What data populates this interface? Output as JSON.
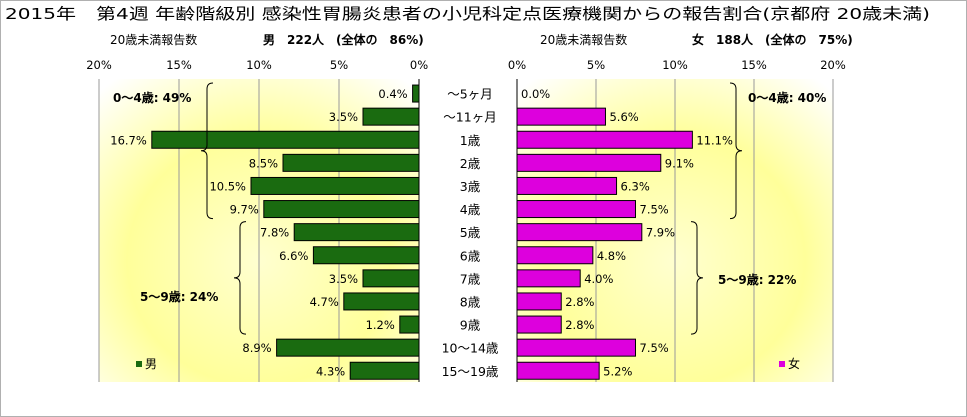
{
  "title": "2015年　第4週 年齢階級別 感染性胃腸炎患者の小児科定点医療機関からの報告割合(京都府 20歳未満)",
  "chart_data": {
    "type": "bar",
    "orientation": "horizontal-population-pyramid",
    "categories": [
      "～5ヶ月",
      "～11ヶ月",
      "1歳",
      "2歳",
      "3歳",
      "4歳",
      "5歳",
      "6歳",
      "7歳",
      "8歳",
      "9歳",
      "10～14歳",
      "15～19歳"
    ],
    "series": [
      {
        "name": "男",
        "header_label": "20歳未満報告数",
        "header_value": "男　222人　(全体の　86%)",
        "color": "#1a6b10",
        "values": [
          0.4,
          3.5,
          16.7,
          8.5,
          10.5,
          9.7,
          7.8,
          6.6,
          3.5,
          4.7,
          1.2,
          8.9,
          4.3
        ],
        "labels": [
          "0.4%",
          "3.5%",
          "16.7%",
          "8.5%",
          "10.5%",
          "9.7%",
          "7.8%",
          "6.6%",
          "3.5%",
          "4.7%",
          "1.2%",
          "8.9%",
          "4.3%"
        ],
        "axis_ticks": [
          "20%",
          "15%",
          "10%",
          "5%",
          "0%"
        ],
        "brackets": [
          {
            "label": "0～4歳: 49%",
            "from": 0,
            "to": 5
          },
          {
            "label": "5～9歳: 24%",
            "from": 6,
            "to": 10
          }
        ]
      },
      {
        "name": "女",
        "header_label": "20歳未満報告数",
        "header_value": "女　188人　(全体の　75%)",
        "color": "#dd00dd",
        "values": [
          0.0,
          5.6,
          11.1,
          9.1,
          6.3,
          7.5,
          7.9,
          4.8,
          4.0,
          2.8,
          2.8,
          7.5,
          5.2
        ],
        "labels": [
          "0.0%",
          "5.6%",
          "11.1%",
          "9.1%",
          "6.3%",
          "7.5%",
          "7.9%",
          "4.8%",
          "4.0%",
          "2.8%",
          "2.8%",
          "7.5%",
          "5.2%"
        ],
        "axis_ticks": [
          "0%",
          "5%",
          "10%",
          "15%",
          "20%"
        ],
        "brackets": [
          {
            "label": "0～4歳: 40%",
            "from": 0,
            "to": 5
          },
          {
            "label": "5～9歳: 22%",
            "from": 6,
            "to": 10
          }
        ]
      }
    ],
    "xlim": [
      0,
      20
    ],
    "grid": true,
    "legend": [
      "男",
      "女"
    ]
  }
}
